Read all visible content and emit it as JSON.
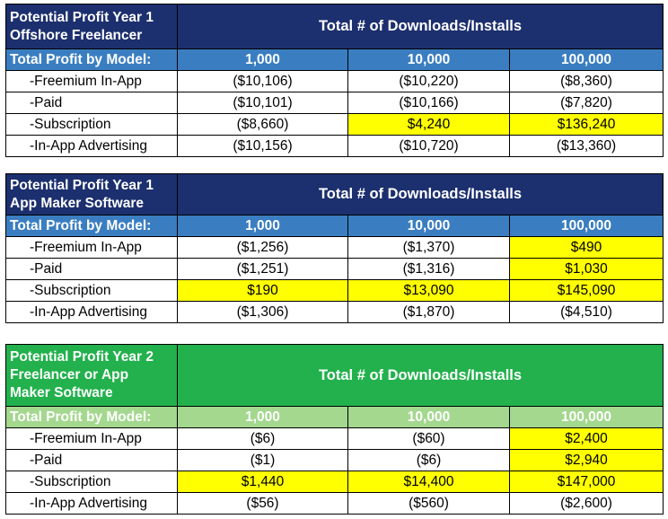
{
  "colors": {
    "navy": "#1c2f6e",
    "blue": "#3a7ec1",
    "green": "#22b14c",
    "light_green": "#a3d88e",
    "highlight": "#ffff00"
  },
  "tables": [
    {
      "title_lines": [
        "Potential Profit Year 1",
        "Offshore Freelancer"
      ],
      "total_header": "Total # of Downloads/Installs",
      "model_label": "Total Profit by Model:",
      "columns": [
        "1,000",
        "10,000",
        "100,000"
      ],
      "rows": [
        {
          "label": "-Freemium In-App",
          "values": [
            "($10,106)",
            "($10,220)",
            "($8,360)"
          ]
        },
        {
          "label": "-Paid",
          "values": [
            "($10,101)",
            "($10,166)",
            "($7,820)"
          ]
        },
        {
          "label": "-Subscription",
          "values": [
            "($8,660)",
            "$4,240",
            "$136,240"
          ]
        },
        {
          "label": "-In-App Advertising",
          "values": [
            "($10,156)",
            "($10,720)",
            "($13,360)"
          ]
        }
      ]
    },
    {
      "title_lines": [
        "Potential Profit Year 1",
        "App Maker Software"
      ],
      "total_header": "Total # of Downloads/Installs",
      "model_label": "Total Profit by Model:",
      "columns": [
        "1,000",
        "10,000",
        "100,000"
      ],
      "rows": [
        {
          "label": "-Freemium In-App",
          "values": [
            "($1,256)",
            "($1,370)",
            "$490"
          ]
        },
        {
          "label": "-Paid",
          "values": [
            "($1,251)",
            "($1,316)",
            "$1,030"
          ]
        },
        {
          "label": "-Subscription",
          "values": [
            "$190",
            "$13,090",
            "$145,090"
          ]
        },
        {
          "label": "-In-App Advertising",
          "values": [
            "($1,306)",
            "($1,870)",
            "($4,510)"
          ]
        }
      ]
    },
    {
      "title_lines": [
        "Potential Profit Year 2",
        "Freelancer or App",
        "Maker Software"
      ],
      "total_header": "Total # of Downloads/Installs",
      "model_label": "Total Profit by Model:",
      "columns": [
        "1,000",
        "10,000",
        "100,000"
      ],
      "rows": [
        {
          "label": "-Freemium In-App",
          "values": [
            "($6)",
            "($60)",
            "$2,400"
          ]
        },
        {
          "label": "-Paid",
          "values": [
            "($1)",
            "($6)",
            "$2,940"
          ]
        },
        {
          "label": "-Subscription",
          "values": [
            "$1,440",
            "$14,400",
            "$147,000"
          ]
        },
        {
          "label": "-In-App Advertising",
          "values": [
            "($56)",
            "($560)",
            "($2,600)"
          ]
        }
      ]
    }
  ]
}
